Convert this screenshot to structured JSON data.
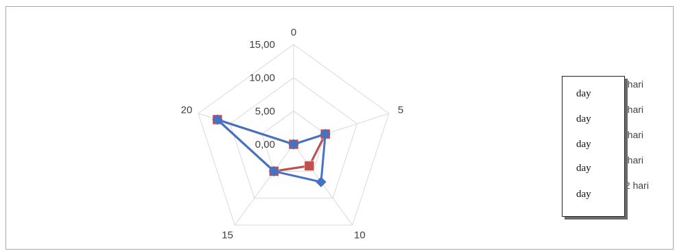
{
  "chart_data": {
    "type": "radar",
    "categories": [
      "0",
      "5",
      "10",
      "15",
      "20"
    ],
    "radial_ticks": [
      "0,00",
      "5,00",
      "10,00",
      "15,00"
    ],
    "r_range": [
      0,
      15
    ],
    "grid": true,
    "legend_position": "right",
    "series": [
      {
        "name": "0 hari",
        "color": "#4472c4",
        "marker": "diamond",
        "values": [
          0,
          5,
          7,
          5,
          12
        ]
      },
      {
        "name": "3 hari",
        "color": "#c0504d",
        "marker": "square",
        "values": [
          0,
          5,
          4,
          5,
          12
        ]
      },
      {
        "name": "6 hari",
        "color": "#9bbb59",
        "marker": "square",
        "values": [
          0,
          5,
          4,
          5,
          12
        ]
      },
      {
        "name": "9 hari",
        "color": "#8064a2",
        "marker": "square",
        "values": [
          0,
          5,
          4,
          5,
          12
        ]
      },
      {
        "name": "12 hari",
        "color": "#4bacc6",
        "marker": "square",
        "values": [
          0,
          5,
          4,
          5,
          12
        ]
      }
    ]
  },
  "overlay": {
    "items": [
      "day",
      "day",
      "day",
      "day",
      "day"
    ]
  }
}
